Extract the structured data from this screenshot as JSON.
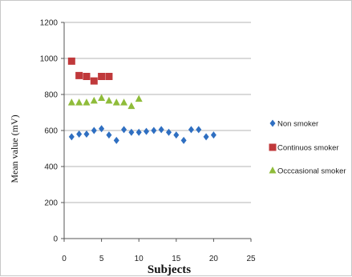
{
  "chart_data": {
    "type": "scatter",
    "title": "",
    "xlabel": "Subjects",
    "ylabel": "Mean value (mV)",
    "xlim": [
      0,
      25
    ],
    "ylim": [
      0,
      1200
    ],
    "xticks": [
      0,
      5,
      10,
      15,
      20,
      25
    ],
    "yticks": [
      0,
      200,
      400,
      600,
      800,
      1000,
      1200
    ],
    "grid": "horizontal",
    "legend": "right",
    "series": [
      {
        "name": "Non smoker",
        "marker": "diamond",
        "color": "#2f6fc1",
        "x": [
          1,
          2,
          3,
          4,
          5,
          6,
          7,
          8,
          9,
          10,
          11,
          12,
          13,
          14,
          15,
          16,
          17,
          18,
          19,
          20
        ],
        "y": [
          565,
          580,
          580,
          600,
          610,
          575,
          545,
          605,
          590,
          590,
          595,
          600,
          605,
          590,
          575,
          545,
          605,
          605,
          565,
          575
        ]
      },
      {
        "name": "Continuos smoker",
        "marker": "square",
        "color": "#c0393b",
        "x": [
          1,
          2,
          3,
          4,
          5,
          6
        ],
        "y": [
          985,
          905,
          900,
          875,
          900,
          900
        ]
      },
      {
        "name": "Occcasional smoker",
        "marker": "triangle",
        "color": "#8fbc3a",
        "x": [
          1,
          2,
          3,
          4,
          5,
          6,
          7,
          8,
          9,
          10
        ],
        "y": [
          755,
          755,
          755,
          765,
          780,
          765,
          755,
          755,
          735,
          775
        ]
      }
    ]
  }
}
